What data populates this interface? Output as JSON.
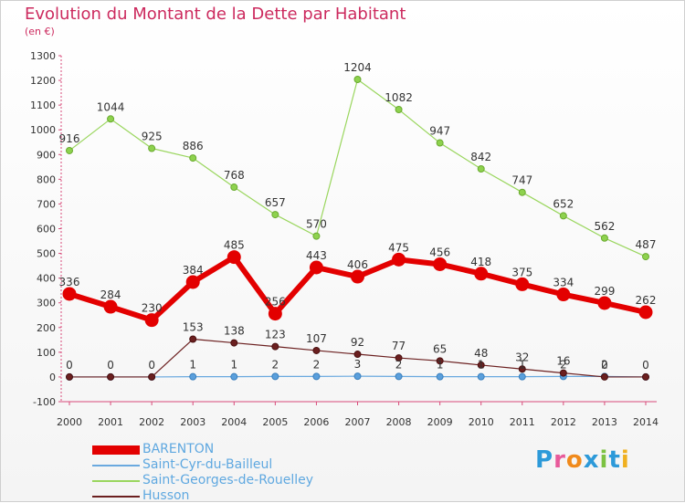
{
  "title": "Evolution du Montant de la Dette par Habitant",
  "subtitle": "(en €)",
  "brand": {
    "text": "Proxiti",
    "colors": [
      "#2d9ad9",
      "#e85a9a",
      "#f08a1c",
      "#2d9ad9",
      "#7cc242",
      "#2d9ad9",
      "#f0b020"
    ]
  },
  "chart_data": {
    "type": "line",
    "title": "Evolution du Montant de la Dette par Habitant",
    "ylabel": "(en €)",
    "x": [
      "2000",
      "2001",
      "2002",
      "2003",
      "2004",
      "2005",
      "2006",
      "2007",
      "2008",
      "2009",
      "2010",
      "2011",
      "2012",
      "2013",
      "2014"
    ],
    "ylim": [
      -100,
      1300
    ],
    "yticks": [
      -100,
      0,
      100,
      200,
      300,
      400,
      500,
      600,
      700,
      800,
      900,
      1000,
      1100,
      1200,
      1300
    ],
    "grid": false,
    "legend_placement": "bottom-left",
    "series": [
      {
        "name": "BARENTON",
        "color": "#e30000",
        "values": [
          336,
          284,
          230,
          384,
          485,
          256,
          443,
          406,
          475,
          456,
          418,
          375,
          334,
          299,
          262
        ]
      },
      {
        "name": "Saint-Cyr-du-Bailleul",
        "color": "#6aa9df",
        "values": [
          0,
          0,
          0,
          1,
          1,
          2,
          2,
          3,
          2,
          1,
          1,
          1,
          2,
          2,
          0
        ],
        "labels": [
          null,
          null,
          null,
          "1",
          "1",
          "2",
          "2",
          "3",
          "2",
          "1",
          "1",
          "1",
          "2",
          "2",
          null
        ]
      },
      {
        "name": "Saint-Georges-de-Rouelley",
        "color": "#9ad65e",
        "values": [
          916,
          1044,
          925,
          886,
          768,
          657,
          570,
          1204,
          1082,
          947,
          842,
          747,
          652,
          562,
          487
        ]
      },
      {
        "name": "Husson",
        "color": "#6b1f1f",
        "values": [
          0,
          0,
          0,
          153,
          138,
          123,
          107,
          92,
          77,
          65,
          48,
          32,
          16,
          0,
          0
        ]
      }
    ]
  }
}
